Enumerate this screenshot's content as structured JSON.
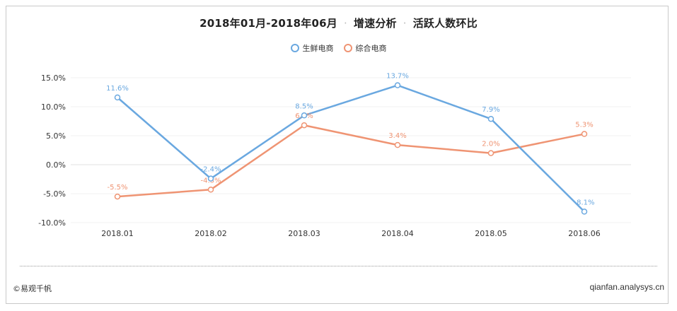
{
  "title": {
    "period": "2018年01月-2018年06月",
    "part1": "增速分析",
    "part2": "活跃人数环比",
    "separator": "·"
  },
  "footer": {
    "source": "©易观千帆",
    "site": "qianfan.analysys.cn"
  },
  "colors": {
    "series1": "#6aa8e0",
    "series2": "#ef9473"
  },
  "chart_data": {
    "type": "line",
    "title": "2018年01月-2018年06月 · 增速分析 · 活跃人数环比",
    "categories": [
      "2018.01",
      "2018.02",
      "2018.03",
      "2018.04",
      "2018.05",
      "2018.06"
    ],
    "series": [
      {
        "name": "生鲜电商",
        "values": [
          11.6,
          -2.4,
          8.5,
          13.7,
          7.9,
          -8.1
        ],
        "labels": [
          "11.6%",
          "-2.4%",
          "8.5%",
          "13.7%",
          "7.9%",
          "-8.1%"
        ]
      },
      {
        "name": "综合电商",
        "values": [
          -5.5,
          -4.3,
          6.8,
          3.4,
          2.0,
          5.3
        ],
        "labels": [
          "-5.5%",
          "-4.3%",
          "6.8%",
          "3.4%",
          "2.0%",
          "5.3%"
        ]
      }
    ],
    "yticks": [
      "15.0%",
      "10.0%",
      "5.0%",
      "0.0%",
      "-5.0%",
      "-10.0%"
    ],
    "ylim": [
      -10,
      15
    ],
    "xlabel": "",
    "ylabel": "",
    "legend": "top-center",
    "grid": true
  }
}
